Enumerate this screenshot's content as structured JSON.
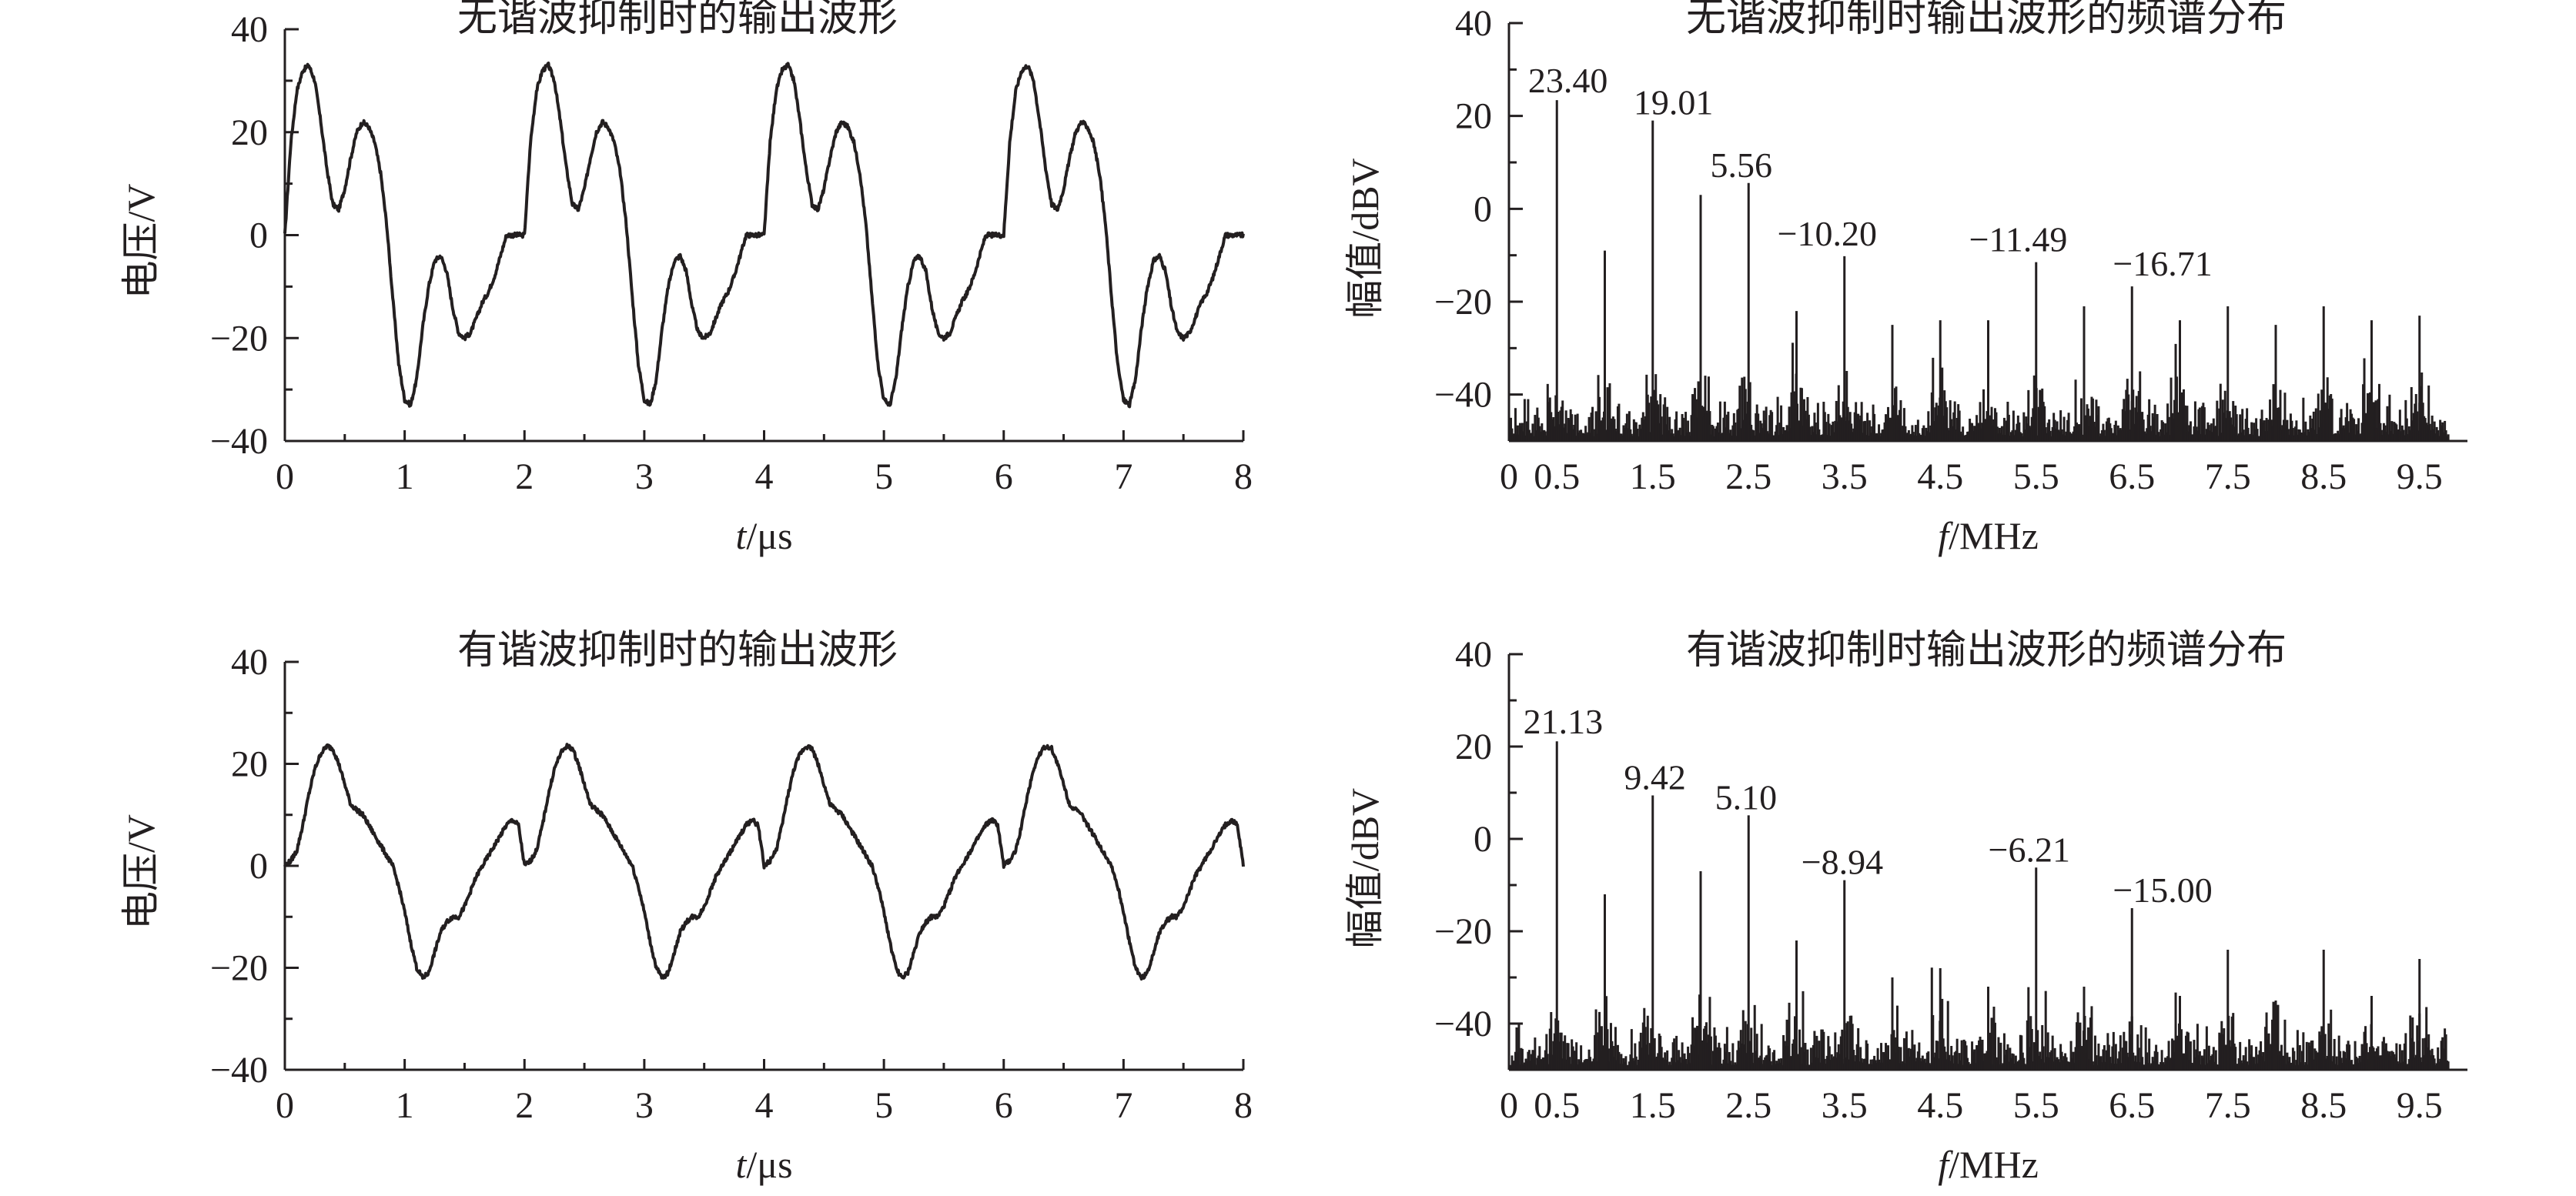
{
  "figure": {
    "panels": [
      {
        "title": "无谐波抑制时的输出波形",
        "xlabel_var": "t",
        "xlabel_unit": "/μs",
        "ylabel": "电压/V"
      },
      {
        "title": "无谐波抑制时输出波形的频谱分布",
        "xlabel_var": "f",
        "xlabel_unit": "/MHz",
        "ylabel": "幅值/dBV"
      },
      {
        "title": "有谐波抑制时的输出波形",
        "xlabel_var": "t",
        "xlabel_unit": "/μs",
        "ylabel": "电压/V"
      },
      {
        "title": "有谐波抑制时输出波形的频谱分布",
        "xlabel_var": "f",
        "xlabel_unit": "/MHz",
        "ylabel": "幅值/dBV"
      }
    ]
  },
  "chart_data": [
    {
      "type": "line",
      "title": "无谐波抑制时的输出波形",
      "xlabel": "t/μs",
      "ylabel": "电压/V",
      "xlim": [
        0,
        8
      ],
      "ylim": [
        -40,
        40
      ],
      "xticks": [
        "0",
        "1",
        "2",
        "3",
        "4",
        "5",
        "6",
        "7",
        "8"
      ],
      "yticks": [
        "40",
        "20",
        "0",
        "−20",
        "−40"
      ],
      "period": 2,
      "x": [
        0,
        0.05,
        0.1,
        0.15,
        0.2,
        0.25,
        0.3,
        0.35,
        0.4,
        0.45,
        0.5,
        0.55,
        0.6,
        0.65,
        0.7,
        0.75,
        0.8,
        0.85,
        0.9,
        0.95,
        1.0,
        1.05,
        1.1,
        1.15,
        1.2,
        1.25,
        1.3,
        1.35,
        1.4,
        1.45,
        1.5,
        1.55,
        1.6,
        1.65,
        1.7,
        1.75,
        1.8,
        1.85,
        1.9,
        1.95,
        2.0
      ],
      "y": [
        0,
        18,
        28,
        32,
        33,
        30,
        22,
        13,
        6,
        5,
        9,
        15,
        20,
        22,
        21,
        18,
        12,
        2,
        -12,
        -25,
        -32,
        -33,
        -28,
        -18,
        -10,
        -5,
        -4,
        -7,
        -14,
        -19,
        -20,
        -19,
        -16,
        -13,
        -11,
        -8,
        -4,
        0,
        0,
        0,
        0
      ]
    },
    {
      "type": "bar",
      "title": "无谐波抑制时输出波形的频谱分布",
      "xlabel": "f/MHz",
      "ylabel": "幅值/dBV",
      "xlim": [
        0,
        10
      ],
      "ylim": [
        -50,
        40
      ],
      "xticks": [
        "0",
        "0.5",
        "1.5",
        "2.5",
        "3.5",
        "4.5",
        "5.5",
        "6.5",
        "7.5",
        "8.5",
        "9.5"
      ],
      "yticks": [
        "40",
        "20",
        "0",
        "−20",
        "−40"
      ],
      "floor": -50,
      "harmonics_x": [
        0.5,
        1.0,
        1.5,
        2.0,
        2.5,
        3.0,
        3.5,
        4.0,
        4.5,
        5.0,
        5.5,
        6.0,
        6.5,
        7.0,
        7.5,
        8.0,
        8.5,
        9.0,
        9.5
      ],
      "harmonics_y": [
        23.4,
        -9,
        19.01,
        3,
        5.56,
        -22,
        -10.2,
        -25,
        -24,
        -24,
        -11.49,
        -21,
        -16.71,
        -24,
        -21,
        -25,
        -21,
        -24,
        -23
      ],
      "labels": [
        {
          "x": 0.5,
          "text": "23.40",
          "dx": -0.3,
          "dy": 10
        },
        {
          "x": 1.5,
          "text": "19.01",
          "dx": -0.2,
          "dy": 8
        },
        {
          "x": 2.5,
          "text": "5.56",
          "dx": -0.4,
          "dy": 8
        },
        {
          "x": 3.5,
          "text": "−10.20",
          "dx": -0.7,
          "dy": 14
        },
        {
          "x": 5.5,
          "text": "−11.49",
          "dx": -0.7,
          "dy": 14
        },
        {
          "x": 6.5,
          "text": "−16.71",
          "dx": -0.2,
          "dy": 14
        }
      ]
    },
    {
      "type": "line",
      "title": "有谐波抑制时的输出波形",
      "xlabel": "t/μs",
      "ylabel": "电压/V",
      "xlim": [
        0,
        8
      ],
      "ylim": [
        -40,
        40
      ],
      "xticks": [
        "0",
        "1",
        "2",
        "3",
        "4",
        "5",
        "6",
        "7",
        "8"
      ],
      "yticks": [
        "40",
        "20",
        "0",
        "−20",
        "−40"
      ],
      "period": 2,
      "x": [
        0,
        0.05,
        0.1,
        0.15,
        0.2,
        0.25,
        0.3,
        0.35,
        0.4,
        0.45,
        0.5,
        0.55,
        0.6,
        0.65,
        0.7,
        0.75,
        0.8,
        0.85,
        0.9,
        0.95,
        1.0,
        1.05,
        1.1,
        1.15,
        1.2,
        1.25,
        1.3,
        1.35,
        1.4,
        1.45,
        1.5,
        1.55,
        1.6,
        1.65,
        1.7,
        1.75,
        1.8,
        1.85,
        1.9,
        1.95,
        2.0
      ],
      "y": [
        0,
        1,
        3,
        8,
        14,
        19,
        22,
        23.5,
        23,
        20,
        16,
        12,
        11,
        10,
        8,
        6,
        4,
        2,
        0,
        -4,
        -9,
        -15,
        -20,
        -22,
        -21,
        -17,
        -13,
        -11,
        -10,
        -10,
        -8,
        -5,
        -2,
        0,
        2,
        4,
        6,
        8,
        9,
        8,
        0
      ]
    },
    {
      "type": "bar",
      "title": "有谐波抑制时输出波形的频谱分布",
      "xlabel": "f/MHz",
      "ylabel": "幅值/dBV",
      "xlim": [
        0,
        10
      ],
      "ylim": [
        -50,
        40
      ],
      "xticks": [
        "0",
        "0.5",
        "1.5",
        "2.5",
        "3.5",
        "4.5",
        "5.5",
        "6.5",
        "7.5",
        "8.5",
        "9.5"
      ],
      "yticks": [
        "40",
        "20",
        "0",
        "−20",
        "−40"
      ],
      "floor": -50,
      "harmonics_x": [
        0.5,
        1.0,
        1.5,
        2.0,
        2.5,
        3.0,
        3.5,
        4.0,
        4.5,
        5.0,
        5.5,
        6.0,
        6.5,
        7.0,
        7.5,
        8.0,
        8.5,
        9.0,
        9.5
      ],
      "harmonics_y": [
        21.13,
        -12,
        9.42,
        -7,
        5.1,
        -22,
        -8.94,
        -30,
        -28,
        -32,
        -6.21,
        -32,
        -15.0,
        -34,
        -24,
        -35,
        -24,
        -34,
        -26
      ],
      "labels": [
        {
          "x": 0.5,
          "text": "21.13",
          "dx": -0.35,
          "dy": 10
        },
        {
          "x": 1.5,
          "text": "9.42",
          "dx": -0.3,
          "dy": 8
        },
        {
          "x": 2.5,
          "text": "5.10",
          "dx": -0.35,
          "dy": 8
        },
        {
          "x": 3.5,
          "text": "−8.94",
          "dx": -0.45,
          "dy": 8
        },
        {
          "x": 5.5,
          "text": "−6.21",
          "dx": -0.5,
          "dy": 8
        },
        {
          "x": 6.5,
          "text": "−15.00",
          "dx": -0.2,
          "dy": 8
        }
      ]
    }
  ]
}
